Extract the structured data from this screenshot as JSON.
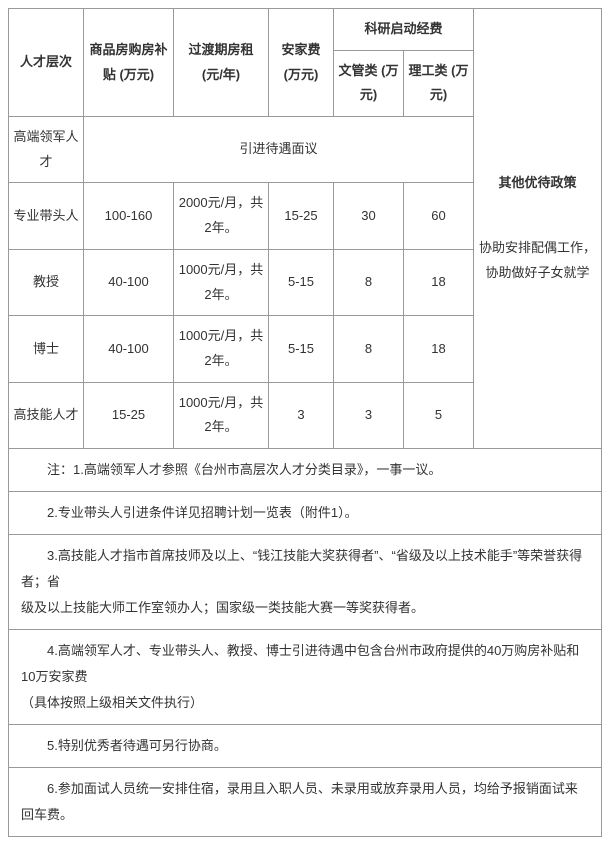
{
  "headers": {
    "col_level": "人才层次",
    "col_subsidy": "商品房购房补贴 (万元)",
    "col_rent": "过渡期房租 (元/年)",
    "col_settle": "安家费 (万元)",
    "col_research": "科研启动经费",
    "col_arts": "文管类 (万元)",
    "col_sci": "理工类 (万元)",
    "col_other": "其他优待政策"
  },
  "rows": {
    "r0": {
      "level": "高端领军人才",
      "merged": "引进待遇面议"
    },
    "r1": {
      "level": "专业带头人",
      "subsidy": "100-160",
      "rent": "2000元/月，共2年。",
      "settle": "15-25",
      "arts": "30",
      "sci": "60"
    },
    "r2": {
      "level": "教授",
      "subsidy": "40-100",
      "rent": "1000元/月，共2年。",
      "settle": "5-15",
      "arts": "8",
      "sci": "18"
    },
    "r3": {
      "level": "博士",
      "subsidy": "40-100",
      "rent": "1000元/月，共2年。",
      "settle": "5-15",
      "arts": "8",
      "sci": "18"
    },
    "r4": {
      "level": "高技能人才",
      "subsidy": "15-25",
      "rent": "1000元/月，共2年。",
      "settle": "3",
      "arts": "3",
      "sci": "5"
    }
  },
  "other_policy": "协助安排配偶工作，协助做好子女就学",
  "notes": {
    "n1": "注：1.高端领军人才参照《台州市高层次人才分类目录》，一事一议。",
    "n2": "2.专业带头人引进条件详见招聘计划一览表（附件1）。",
    "n3a": "3.高技能人才指市首席技师及以上、“钱江技能大奖获得者”、“省级及以上技术能手”等荣誉获得者；省",
    "n3b": "级及以上技能大师工作室领办人；国家级一类技能大赛一等奖获得者。",
    "n4a": "4.高端领军人才、专业带头人、教授、博士引进待遇中包含台州市政府提供的40万购房补贴和10万安家费",
    "n4b": "（具体按照上级相关文件执行）",
    "n5": "5.特别优秀者待遇可另行协商。",
    "n6": "6.参加面试人员统一安排住宿，录用且入职人员、未录用或放弃录用人员，均给予报销面试来回车费。"
  },
  "colwidths": {
    "c1": 75,
    "c2": 90,
    "c3": 95,
    "c4": 65,
    "c5": 70,
    "c6": 70,
    "c7": 128
  }
}
